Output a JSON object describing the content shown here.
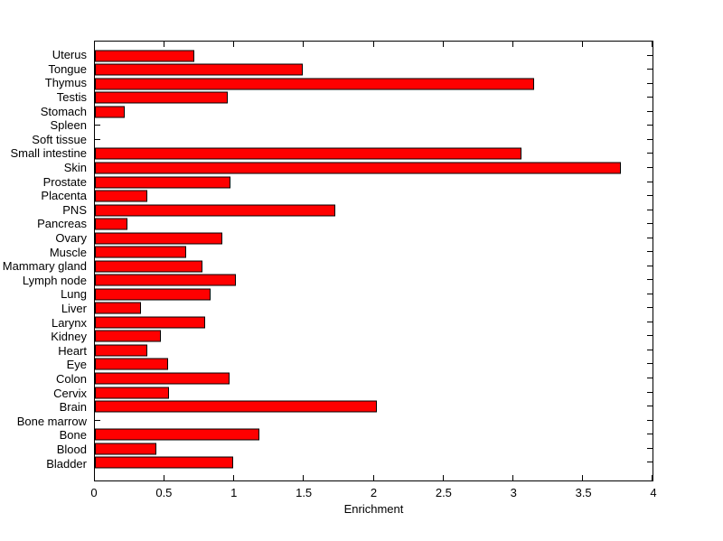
{
  "chart_data": {
    "type": "bar",
    "orientation": "horizontal",
    "title": "",
    "xlabel": "Enrichment",
    "ylabel": "",
    "legend": "none",
    "grid": false,
    "xlim": [
      0,
      4
    ],
    "xticks": [
      0,
      0.5,
      1,
      1.5,
      2,
      2.5,
      3,
      3.5,
      4
    ],
    "xtick_labels": [
      "0",
      "0.5",
      "1",
      "1.5",
      "2",
      "2.5",
      "3",
      "3.5",
      "4"
    ],
    "category_order": "top-to-bottom",
    "categories": [
      "Uterus",
      "Tongue",
      "Thymus",
      "Testis",
      "Stomach",
      "Spleen",
      "Soft tissue",
      "Small intestine",
      "Skin",
      "Prostate",
      "Placenta",
      "PNS",
      "Pancreas",
      "Ovary",
      "Muscle",
      "Mammary gland",
      "Lymph node",
      "Lung",
      "Liver",
      "Larynx",
      "Kidney",
      "Heart",
      "Eye",
      "Colon",
      "Cervix",
      "Brain",
      "Bone marrow",
      "Bone",
      "Blood",
      "Bladder"
    ],
    "values": [
      0.7,
      1.48,
      3.14,
      0.94,
      0.2,
      0,
      0,
      3.05,
      3.76,
      0.96,
      0.36,
      1.71,
      0.22,
      0.9,
      0.64,
      0.76,
      1.0,
      0.82,
      0.32,
      0.78,
      0.46,
      0.36,
      0.51,
      0.95,
      0.52,
      2.01,
      0,
      1.17,
      0.43,
      0.98
    ],
    "bar_color": "#FF0000",
    "bar_border_color": "#000000",
    "axis_color": "#000000",
    "background": "#FFFFFF",
    "text_color": "#000000"
  }
}
